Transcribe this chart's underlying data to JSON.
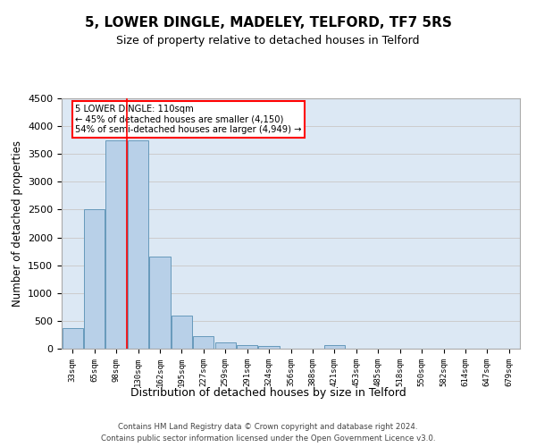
{
  "title": "5, LOWER DINGLE, MADELEY, TELFORD, TF7 5RS",
  "subtitle": "Size of property relative to detached houses in Telford",
  "xlabel": "Distribution of detached houses by size in Telford",
  "ylabel": "Number of detached properties",
  "footer_line1": "Contains HM Land Registry data © Crown copyright and database right 2024.",
  "footer_line2": "Contains public sector information licensed under the Open Government Licence v3.0.",
  "categories": [
    "33sqm",
    "65sqm",
    "98sqm",
    "130sqm",
    "162sqm",
    "195sqm",
    "227sqm",
    "259sqm",
    "291sqm",
    "324sqm",
    "356sqm",
    "388sqm",
    "421sqm",
    "453sqm",
    "485sqm",
    "518sqm",
    "550sqm",
    "582sqm",
    "614sqm",
    "647sqm",
    "679sqm"
  ],
  "values": [
    375,
    2500,
    3750,
    3750,
    1650,
    600,
    225,
    110,
    65,
    50,
    0,
    0,
    65,
    0,
    0,
    0,
    0,
    0,
    0,
    0,
    0
  ],
  "bar_color": "#b8d0e8",
  "bar_edge_color": "#6699bb",
  "grid_color": "#cccccc",
  "bg_color": "#dce8f4",
  "annotation_text": "5 LOWER DINGLE: 110sqm\n← 45% of detached houses are smaller (4,150)\n54% of semi-detached houses are larger (4,949) →",
  "annotation_box_color": "#ff0000",
  "ylim": [
    0,
    4500
  ],
  "yticks": [
    0,
    500,
    1000,
    1500,
    2000,
    2500,
    3000,
    3500,
    4000,
    4500
  ],
  "title_fontsize": 11,
  "subtitle_fontsize": 9,
  "xlabel_fontsize": 9,
  "ylabel_fontsize": 8.5
}
